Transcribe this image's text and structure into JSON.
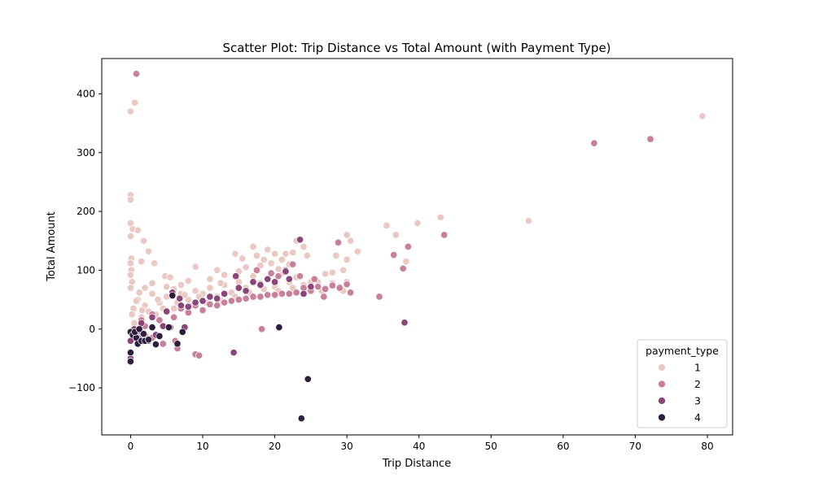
{
  "chart_data": {
    "type": "scatter",
    "title": "Scatter Plot: Trip Distance vs Total Amount (with Payment Type)",
    "xlabel": "Trip Distance",
    "ylabel": "Total Amount",
    "xlim": [
      -4,
      83.5
    ],
    "ylim": [
      -180,
      460
    ],
    "x_ticks": [
      0,
      10,
      20,
      30,
      40,
      50,
      60,
      70,
      80
    ],
    "y_ticks": [
      -100,
      0,
      100,
      200,
      300,
      400
    ],
    "grid": false,
    "legend": {
      "title": "payment_type",
      "placement": "bottom-right",
      "entries": [
        "1",
        "2",
        "3",
        "4"
      ]
    },
    "colors": {
      "1": "#ebc9c3",
      "2": "#c87f99",
      "3": "#8b4579",
      "4": "#2d1e3e"
    },
    "series": [
      {
        "name": "1",
        "points": [
          [
            0.0,
            370
          ],
          [
            0.6,
            385
          ],
          [
            0.0,
            228
          ],
          [
            0.0,
            220
          ],
          [
            0.0,
            180
          ],
          [
            0.3,
            170
          ],
          [
            0.0,
            158
          ],
          [
            0.1,
            120
          ],
          [
            0.0,
            112
          ],
          [
            0.1,
            100
          ],
          [
            0.0,
            92
          ],
          [
            0.2,
            80
          ],
          [
            0.0,
            70
          ],
          [
            1.0,
            168
          ],
          [
            1.8,
            150
          ],
          [
            2.5,
            132
          ],
          [
            1.5,
            115
          ],
          [
            3.3,
            112
          ],
          [
            4.8,
            90
          ],
          [
            5.5,
            88
          ],
          [
            7.0,
            75
          ],
          [
            9.0,
            106
          ],
          [
            12.0,
            100
          ],
          [
            14.5,
            128
          ],
          [
            15.5,
            120
          ],
          [
            17.0,
            140
          ],
          [
            17.5,
            125
          ],
          [
            18.5,
            118
          ],
          [
            19.0,
            135
          ],
          [
            20.0,
            128
          ],
          [
            21.0,
            118
          ],
          [
            21.5,
            128
          ],
          [
            22.5,
            130
          ],
          [
            23.0,
            150
          ],
          [
            24.0,
            140
          ],
          [
            24.5,
            125
          ],
          [
            26.0,
            80
          ],
          [
            27.0,
            94
          ],
          [
            28.0,
            96
          ],
          [
            28.5,
            125
          ],
          [
            29.5,
            100
          ],
          [
            30.0,
            160
          ],
          [
            30.5,
            150
          ],
          [
            30.0,
            118
          ],
          [
            31.5,
            132
          ],
          [
            35.5,
            176
          ],
          [
            36.8,
            160
          ],
          [
            38.2,
            115
          ],
          [
            39.8,
            180
          ],
          [
            43.0,
            190
          ],
          [
            55.2,
            184
          ],
          [
            79.3,
            362
          ],
          [
            1.0,
            50
          ],
          [
            2.0,
            40
          ],
          [
            3.0,
            60
          ],
          [
            4.0,
            45
          ],
          [
            5.0,
            55
          ],
          [
            6.0,
            35
          ],
          [
            7.0,
            60
          ],
          [
            8.0,
            50
          ],
          [
            9.0,
            65
          ],
          [
            10.0,
            60
          ],
          [
            11.0,
            70
          ],
          [
            12.0,
            55
          ],
          [
            13.0,
            75
          ],
          [
            14.0,
            62
          ],
          [
            15.0,
            80
          ],
          [
            16.0,
            70
          ],
          [
            17.0,
            90
          ],
          [
            18.0,
            78
          ],
          [
            19.0,
            85
          ],
          [
            20.0,
            72
          ],
          [
            21.0,
            95
          ],
          [
            22.0,
            80
          ],
          [
            23.0,
            88
          ],
          [
            24.0,
            75
          ],
          [
            25.0,
            80
          ],
          [
            26.0,
            72
          ],
          [
            27.0,
            70
          ],
          [
            28.0,
            78
          ],
          [
            29.0,
            72
          ],
          [
            30.0,
            80
          ],
          [
            29.5,
            65
          ],
          [
            2.5,
            30
          ],
          [
            3.5,
            25
          ],
          [
            1.5,
            20
          ],
          [
            0.5,
            10
          ],
          [
            4.5,
            35
          ],
          [
            6.5,
            45
          ],
          [
            8.5,
            40
          ],
          [
            10.5,
            45
          ],
          [
            12.5,
            48
          ],
          [
            14.5,
            55
          ],
          [
            16.5,
            62
          ],
          [
            18.5,
            68
          ],
          [
            20.5,
            65
          ],
          [
            22.5,
            70
          ],
          [
            24.5,
            68
          ],
          [
            26.5,
            65
          ],
          [
            2.0,
            70
          ],
          [
            3.0,
            78
          ],
          [
            5.0,
            72
          ],
          [
            6.0,
            68
          ],
          [
            8.0,
            82
          ],
          [
            11.0,
            85
          ],
          [
            13.0,
            92
          ],
          [
            15.0,
            98
          ],
          [
            16.0,
            105
          ],
          [
            18.0,
            108
          ],
          [
            19.5,
            112
          ],
          [
            20.5,
            102
          ],
          [
            22.0,
            110
          ],
          [
            12.5,
            78
          ],
          [
            9.5,
            55
          ],
          [
            1.2,
            62
          ],
          [
            0.8,
            48
          ],
          [
            0.4,
            35
          ],
          [
            0.2,
            25
          ],
          [
            1.6,
            32
          ],
          [
            3.8,
            50
          ],
          [
            5.8,
            62
          ],
          [
            7.5,
            58
          ]
        ]
      },
      {
        "name": "2",
        "points": [
          [
            0.8,
            434
          ],
          [
            64.3,
            316
          ],
          [
            72.1,
            323
          ],
          [
            43.5,
            160
          ],
          [
            38.5,
            140
          ],
          [
            36.5,
            126
          ],
          [
            37.8,
            103
          ],
          [
            34.5,
            55
          ],
          [
            30.5,
            62
          ],
          [
            28.8,
            147
          ],
          [
            26.8,
            55
          ],
          [
            18.2,
            0
          ],
          [
            9.0,
            -43
          ],
          [
            9.5,
            -45
          ],
          [
            6.2,
            -20
          ],
          [
            6.5,
            -33
          ],
          [
            4.5,
            -25
          ],
          [
            3.0,
            -15
          ],
          [
            2.0,
            -10
          ],
          [
            1.0,
            -5
          ],
          [
            0.0,
            -5
          ],
          [
            0.0,
            -20
          ],
          [
            1.5,
            15
          ],
          [
            3.0,
            25
          ],
          [
            5.0,
            30
          ],
          [
            7.0,
            35
          ],
          [
            9.0,
            40
          ],
          [
            11.0,
            42
          ],
          [
            13.0,
            45
          ],
          [
            15.0,
            50
          ],
          [
            17.0,
            55
          ],
          [
            19.0,
            58
          ],
          [
            21.0,
            60
          ],
          [
            23.0,
            62
          ],
          [
            25.0,
            65
          ],
          [
            27.0,
            68
          ],
          [
            29.0,
            70
          ],
          [
            12.0,
            40
          ],
          [
            14.0,
            48
          ],
          [
            16.0,
            52
          ],
          [
            18.0,
            55
          ],
          [
            20.0,
            58
          ],
          [
            22.0,
            60
          ],
          [
            24.0,
            70
          ],
          [
            26.0,
            72
          ],
          [
            28.0,
            74
          ],
          [
            30.0,
            76
          ],
          [
            2.0,
            5
          ],
          [
            4.0,
            15
          ],
          [
            6.0,
            20
          ],
          [
            8.0,
            28
          ],
          [
            10.0,
            32
          ],
          [
            17.5,
            100
          ],
          [
            19.5,
            95
          ],
          [
            21.5,
            100
          ],
          [
            23.5,
            90
          ],
          [
            22.5,
            110
          ],
          [
            20.5,
            90
          ],
          [
            25.5,
            85
          ]
        ]
      },
      {
        "name": "3",
        "points": [
          [
            0.0,
            -50
          ],
          [
            0.0,
            -55
          ],
          [
            0.0,
            -20
          ],
          [
            0.5,
            -10
          ],
          [
            1.0,
            -15
          ],
          [
            2.5,
            -20
          ],
          [
            3.5,
            -10
          ],
          [
            4.5,
            5
          ],
          [
            5.5,
            3
          ],
          [
            5.8,
            62
          ],
          [
            6.8,
            52
          ],
          [
            7.5,
            3
          ],
          [
            14.3,
            -40
          ],
          [
            14.6,
            90
          ],
          [
            23.5,
            152
          ],
          [
            38.0,
            11
          ],
          [
            21.5,
            98
          ],
          [
            19.0,
            85
          ],
          [
            17.0,
            80
          ],
          [
            15.0,
            70
          ],
          [
            13.0,
            60
          ],
          [
            11.0,
            55
          ],
          [
            9.0,
            45
          ],
          [
            7.0,
            40
          ],
          [
            5.0,
            30
          ],
          [
            3.0,
            20
          ],
          [
            1.5,
            10
          ],
          [
            0.5,
            0
          ],
          [
            16.0,
            65
          ],
          [
            18.0,
            75
          ],
          [
            20.0,
            80
          ],
          [
            22.0,
            85
          ],
          [
            24.0,
            60
          ],
          [
            25.0,
            72
          ],
          [
            12.0,
            52
          ],
          [
            10.0,
            48
          ],
          [
            8.0,
            38
          ]
        ]
      },
      {
        "name": "4",
        "points": [
          [
            0.0,
            -5
          ],
          [
            0.0,
            -40
          ],
          [
            0.0,
            -55
          ],
          [
            0.3,
            -10
          ],
          [
            0.8,
            -15
          ],
          [
            1.0,
            -25
          ],
          [
            1.5,
            -20
          ],
          [
            2.0,
            -20
          ],
          [
            2.5,
            -18
          ],
          [
            3.5,
            -26
          ],
          [
            3.0,
            3
          ],
          [
            1.8,
            -8
          ],
          [
            0.6,
            -5
          ],
          [
            5.3,
            3
          ],
          [
            5.8,
            57
          ],
          [
            6.5,
            -25
          ],
          [
            20.6,
            3
          ],
          [
            24.6,
            -85
          ],
          [
            23.7,
            -152
          ],
          [
            7.2,
            -5
          ],
          [
            4.0,
            -12
          ],
          [
            1.2,
            0
          ]
        ]
      }
    ]
  }
}
